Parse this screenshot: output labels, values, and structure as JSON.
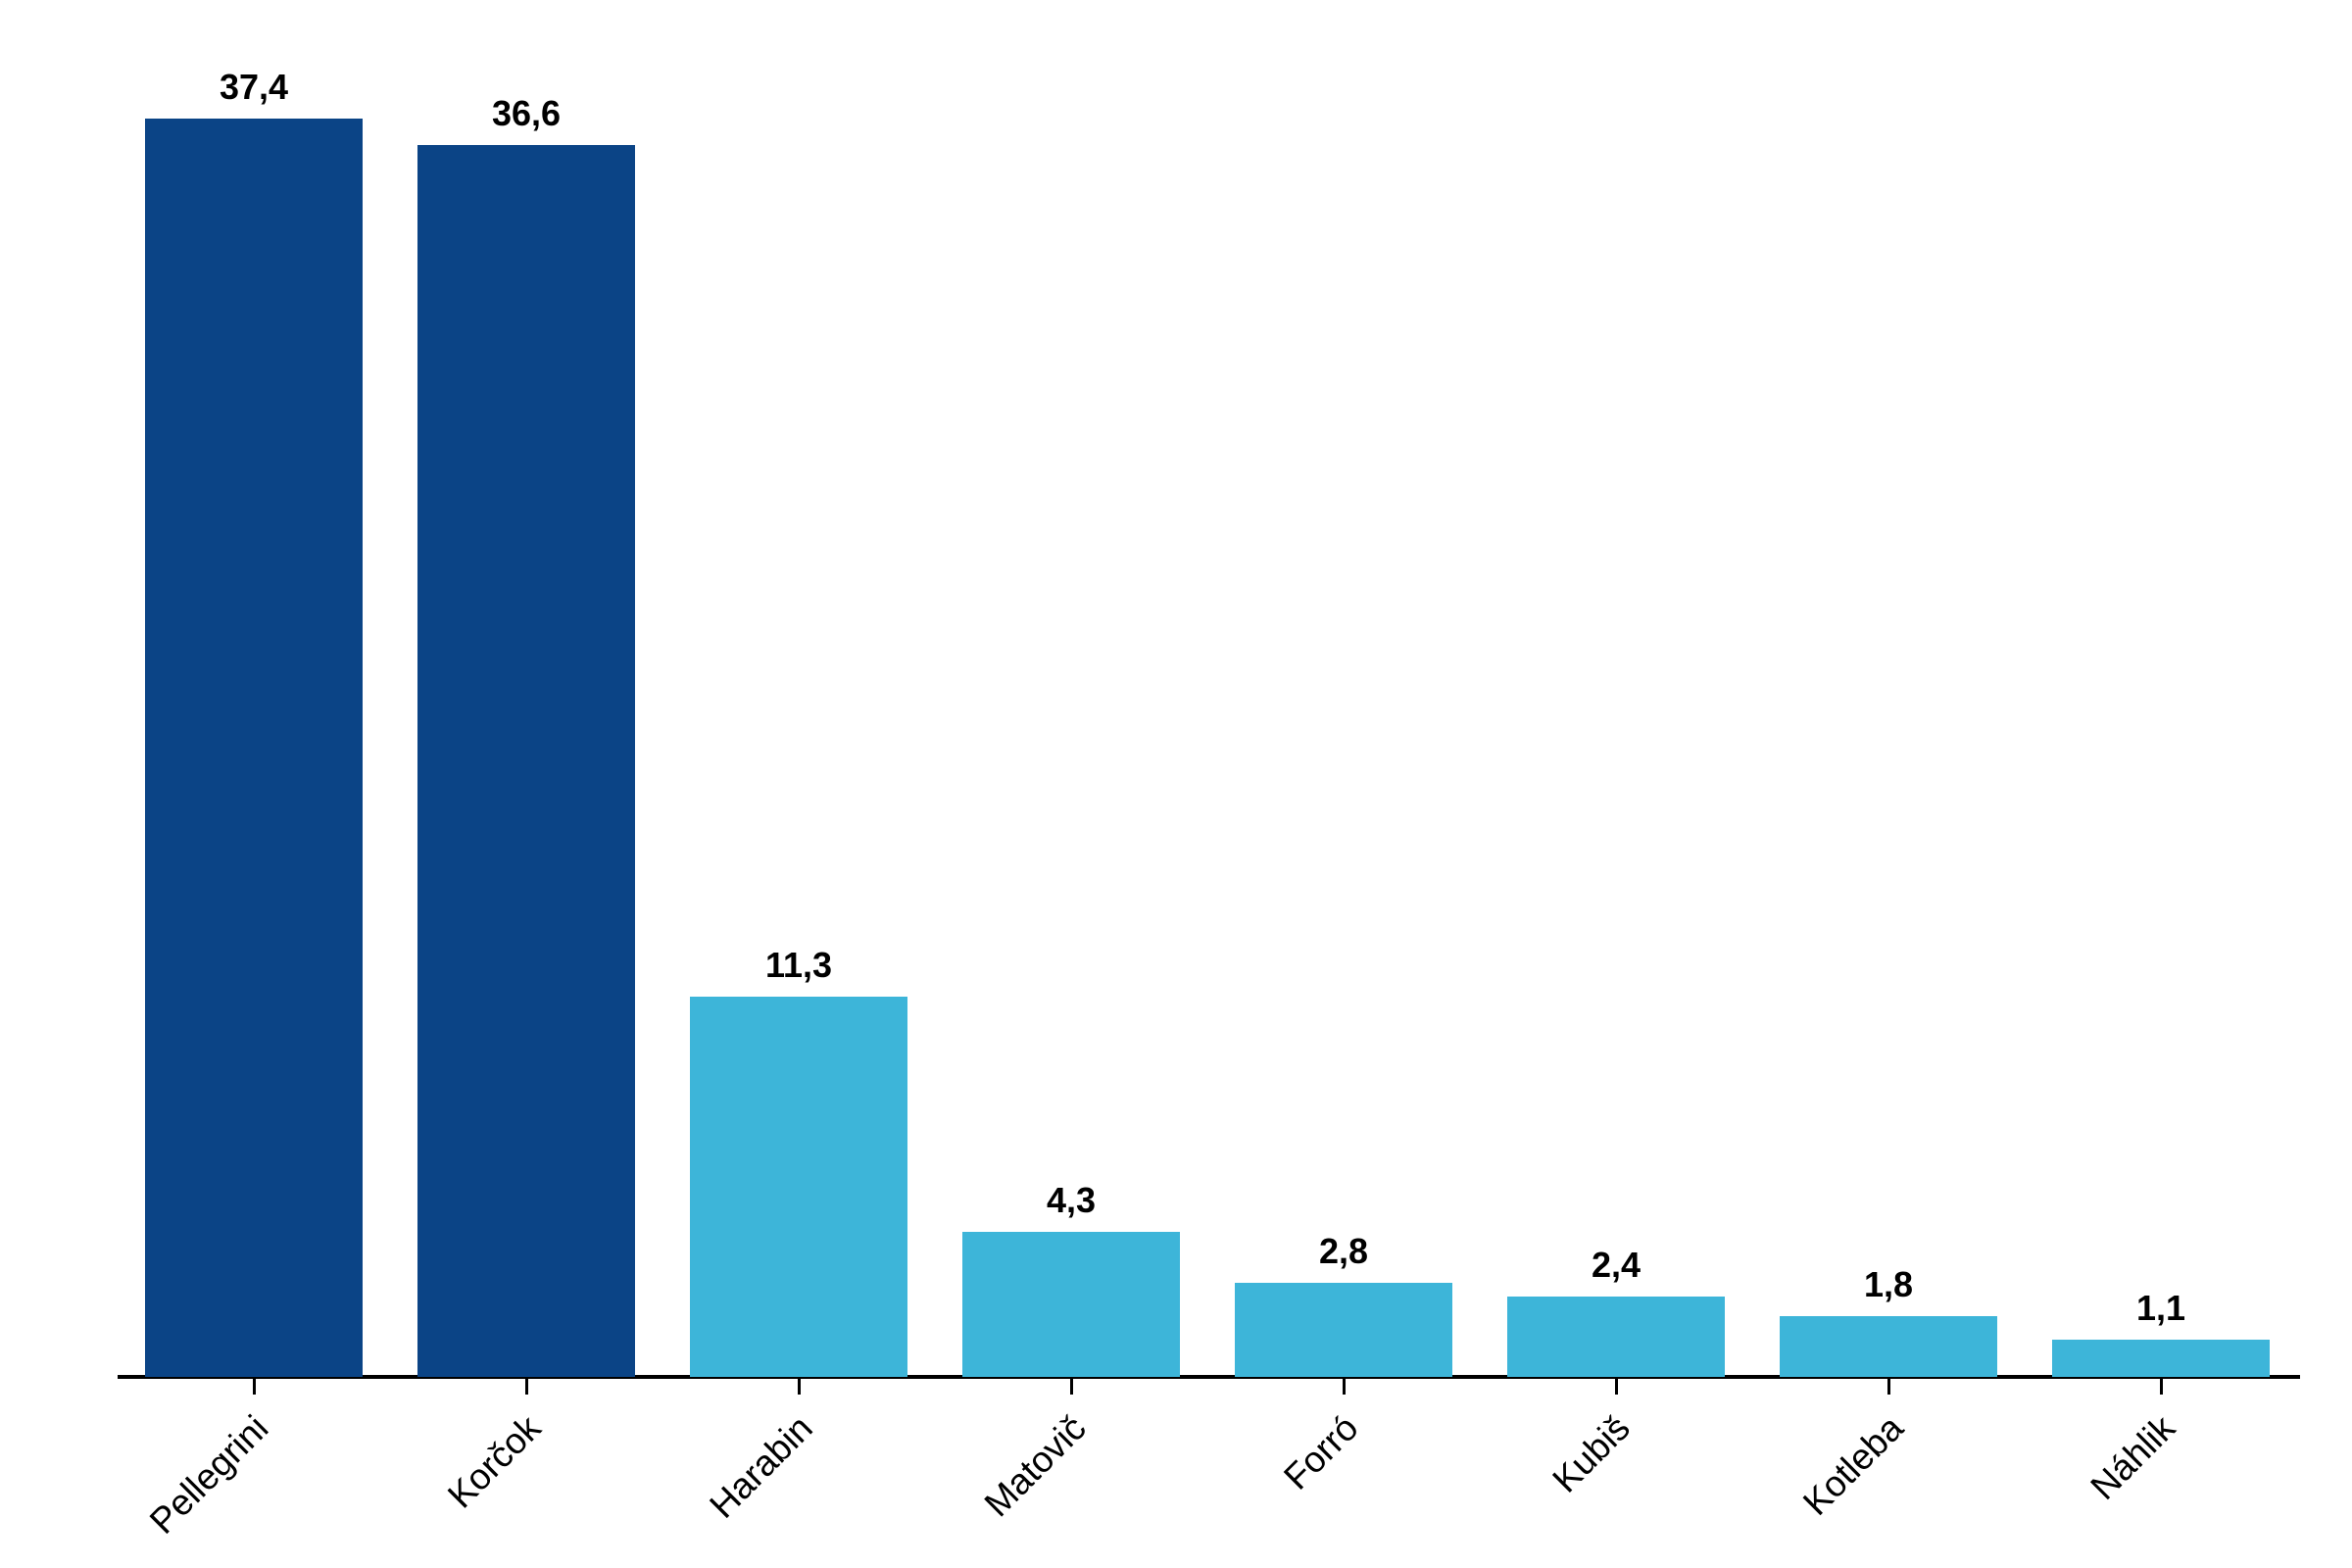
{
  "chart_data": {
    "type": "bar",
    "categories": [
      "Pellegrini",
      "Korčok",
      "Harabin",
      "Matovič",
      "Forró",
      "Kubiš",
      "Kotleba",
      "Náhlik"
    ],
    "values": [
      37.4,
      36.6,
      11.3,
      4.3,
      2.8,
      2.4,
      1.8,
      1.1
    ],
    "value_labels": [
      "37,4",
      "36,6",
      "11,3",
      "4,3",
      "2,8",
      "2,4",
      "1,8",
      "1,1"
    ],
    "bar_colors": [
      "#0b4486",
      "#0b4486",
      "#3db5d9",
      "#3db5d9",
      "#3db5d9",
      "#3db5d9",
      "#3db5d9",
      "#3db5d9"
    ],
    "colors": {
      "dark_blue": "#0b4486",
      "light_blue": "#3db5d9",
      "axis": "#000000",
      "text": "#000000"
    },
    "decimal_separator": ",",
    "title": "",
    "xlabel": "",
    "ylabel": "",
    "ylim": [
      0,
      40
    ],
    "grid": false,
    "legend": "none",
    "x_tick_rotation_deg": 45
  }
}
